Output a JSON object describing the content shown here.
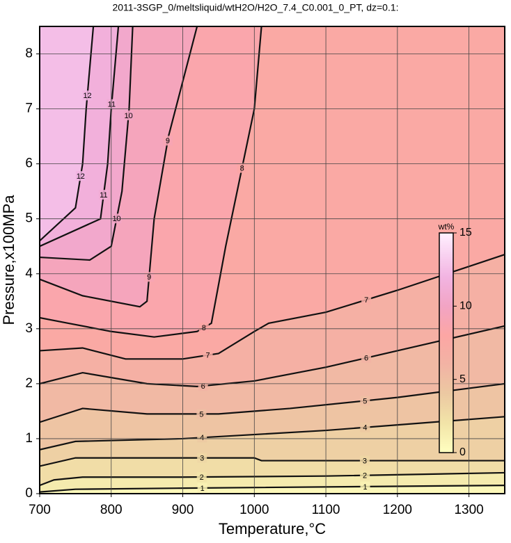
{
  "chart_data": {
    "type": "contour",
    "title": "2011-3SGP_0/meltsliquid/wtH2O/H2O_7.4_C0.001_0_PT, dz=0.1:",
    "x_label": "Temperature,°C",
    "y_label": "Pressure,x100MPa",
    "xlim": [
      700,
      1350
    ],
    "ylim": [
      0,
      8.5
    ],
    "xticks": [
      700,
      800,
      900,
      1000,
      1100,
      1200,
      1300
    ],
    "yticks": [
      0,
      1,
      2,
      3,
      4,
      5,
      6,
      7,
      8
    ],
    "grid": true,
    "colormap": [
      {
        "value": 0,
        "color": "#ffffc0"
      },
      {
        "value": 2,
        "color": "#f2e4a8"
      },
      {
        "value": 4,
        "color": "#ecc9a2"
      },
      {
        "value": 6,
        "color": "#f2b3a4"
      },
      {
        "value": 8,
        "color": "#fca6a4"
      },
      {
        "value": 10,
        "color": "#f2a4c4"
      },
      {
        "value": 12,
        "color": "#f2b4e2"
      },
      {
        "value": 15,
        "color": "#fff0ff"
      }
    ],
    "colorbar": {
      "label": "wt%",
      "lim": [
        0,
        15
      ],
      "ticks": [
        0,
        5,
        10,
        15
      ]
    },
    "contours": [
      {
        "level": 1,
        "x": [
          700,
          750,
          900,
          1350
        ],
        "y": [
          0.03,
          0.08,
          0.1,
          0.15
        ]
      },
      {
        "level": 2,
        "x": [
          700,
          720,
          760,
          900,
          1100,
          1350
        ],
        "y": [
          0.15,
          0.25,
          0.3,
          0.3,
          0.32,
          0.38
        ]
      },
      {
        "level": 3,
        "x": [
          700,
          750,
          900,
          1000,
          1010,
          1350
        ],
        "y": [
          0.5,
          0.65,
          0.65,
          0.65,
          0.6,
          0.6
        ]
      },
      {
        "level": 4,
        "x": [
          700,
          750,
          900,
          1100,
          1350
        ],
        "y": [
          0.8,
          0.95,
          1.0,
          1.15,
          1.4
        ]
      },
      {
        "level": 5,
        "x": [
          700,
          760,
          850,
          950,
          1050,
          1200,
          1350
        ],
        "y": [
          1.3,
          1.55,
          1.45,
          1.45,
          1.55,
          1.75,
          2.0
        ]
      },
      {
        "level": 6,
        "x": [
          700,
          760,
          850,
          920,
          1000,
          1100,
          1200,
          1350
        ],
        "y": [
          2.0,
          2.2,
          2.0,
          1.95,
          2.05,
          2.3,
          2.6,
          3.05
        ]
      },
      {
        "level": 7,
        "x": [
          700,
          760,
          820,
          900,
          950,
          1000,
          1020,
          1100,
          1200,
          1350
        ],
        "y": [
          2.6,
          2.65,
          2.45,
          2.45,
          2.55,
          2.95,
          3.1,
          3.3,
          3.7,
          4.35
        ]
      },
      {
        "level": 8,
        "x": [
          700,
          740,
          800,
          860,
          920,
          940,
          960,
          1000,
          1010
        ],
        "y": [
          3.2,
          3.1,
          2.95,
          2.85,
          2.95,
          3.1,
          4.5,
          7.0,
          8.5
        ]
      },
      {
        "level": 9,
        "x": [
          700,
          760,
          840,
          850,
          860,
          880,
          920
        ],
        "y": [
          3.9,
          3.6,
          3.4,
          3.5,
          5.0,
          6.5,
          8.5
        ]
      },
      {
        "level": 10,
        "x": [
          700,
          770,
          800,
          815,
          825,
          830
        ],
        "y": [
          4.3,
          4.25,
          4.5,
          5.5,
          7.0,
          8.5
        ]
      },
      {
        "level": 11,
        "x": [
          700,
          785,
          795,
          800,
          810
        ],
        "y": [
          4.5,
          5.0,
          6.0,
          7.0,
          8.5
        ]
      },
      {
        "level": 12,
        "x": [
          700,
          750,
          760,
          765,
          775
        ],
        "y": [
          4.6,
          5.2,
          6.0,
          7.0,
          8.5
        ]
      }
    ]
  }
}
